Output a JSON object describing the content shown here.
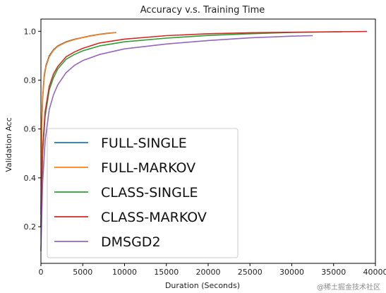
{
  "chart_data": {
    "type": "line",
    "title": "Accuracy v.s. Training Time",
    "xlabel": "Duration (Seconds)",
    "ylabel": "Validation Acc",
    "xlim": [
      0,
      40000
    ],
    "ylim": [
      0.05,
      1.05
    ],
    "xticks": [
      0,
      5000,
      10000,
      15000,
      20000,
      25000,
      30000,
      35000,
      40000
    ],
    "yticks": [
      0.2,
      0.4,
      0.6,
      0.8,
      1.0
    ],
    "ytick_labels": [
      "0.2",
      "0.4",
      "0.6",
      "0.8",
      "1.0"
    ],
    "grid": false,
    "legend_position": "lower-left",
    "series": [
      {
        "name": "FULL-SINGLE",
        "color": "#1f77b4",
        "x": [
          0,
          100,
          200,
          400,
          600,
          1000,
          1500,
          2000,
          3000,
          4000,
          5000,
          6000,
          7000,
          8000,
          9000
        ],
        "y": [
          0.25,
          0.62,
          0.73,
          0.82,
          0.86,
          0.9,
          0.925,
          0.94,
          0.957,
          0.967,
          0.975,
          0.982,
          0.988,
          0.992,
          0.995
        ]
      },
      {
        "name": "FULL-MARKOV",
        "color": "#ff7f0e",
        "x": [
          0,
          100,
          200,
          400,
          600,
          1000,
          1500,
          2000,
          3000,
          4000,
          5000,
          6000,
          7000,
          8000,
          9000
        ],
        "y": [
          0.22,
          0.6,
          0.72,
          0.81,
          0.855,
          0.895,
          0.922,
          0.938,
          0.955,
          0.966,
          0.974,
          0.981,
          0.987,
          0.991,
          0.995
        ]
      },
      {
        "name": "CLASS-SINGLE",
        "color": "#2ca02c",
        "x": [
          0,
          200,
          500,
          1000,
          1500,
          2000,
          3000,
          4000,
          5000,
          7000,
          10000,
          15000,
          20000,
          25000,
          30000,
          36000
        ],
        "y": [
          0.2,
          0.5,
          0.65,
          0.76,
          0.81,
          0.845,
          0.885,
          0.905,
          0.92,
          0.94,
          0.957,
          0.972,
          0.983,
          0.99,
          0.995,
          0.998
        ]
      },
      {
        "name": "CLASS-MARKOV",
        "color": "#d62728",
        "x": [
          0,
          200,
          500,
          1000,
          1500,
          2000,
          3000,
          4000,
          5000,
          7000,
          10000,
          15000,
          20000,
          25000,
          30000,
          35000,
          39000
        ],
        "y": [
          0.2,
          0.52,
          0.67,
          0.775,
          0.825,
          0.855,
          0.895,
          0.915,
          0.93,
          0.952,
          0.968,
          0.982,
          0.99,
          0.994,
          0.996,
          0.998,
          0.999
        ]
      },
      {
        "name": "DMSGD2",
        "color": "#9467bd",
        "x": [
          0,
          200,
          500,
          1000,
          1500,
          2000,
          3000,
          4000,
          5000,
          7000,
          10000,
          15000,
          20000,
          25000,
          30000,
          32500
        ],
        "y": [
          0.1,
          0.38,
          0.55,
          0.68,
          0.74,
          0.78,
          0.83,
          0.86,
          0.88,
          0.905,
          0.928,
          0.948,
          0.962,
          0.973,
          0.98,
          0.982
        ]
      }
    ]
  },
  "watermark": "@稀土掘金技术社区"
}
